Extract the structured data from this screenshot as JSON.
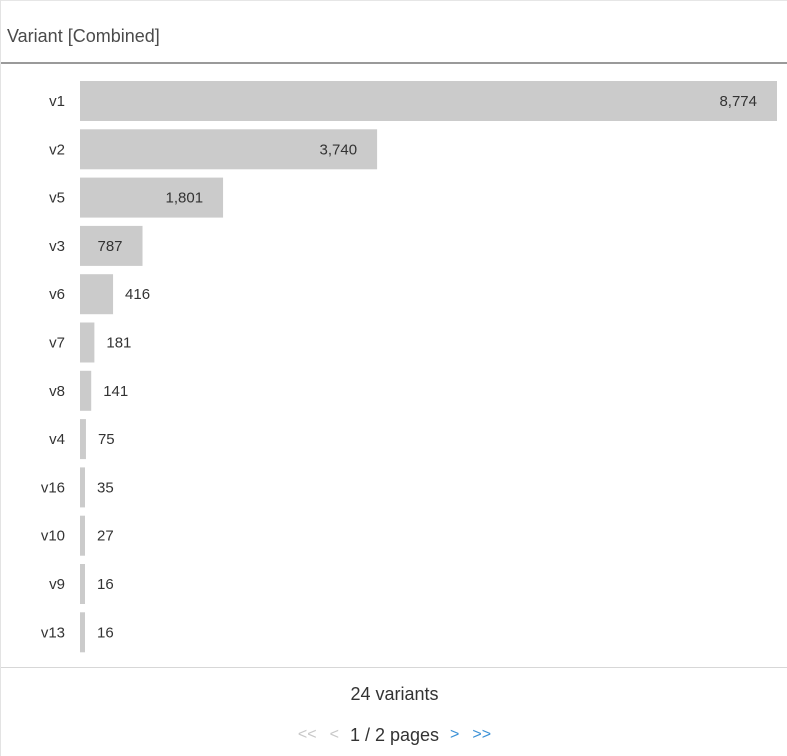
{
  "panel": {
    "title": "Variant [Combined]"
  },
  "chart_data": {
    "type": "bar",
    "orientation": "horizontal",
    "categories": [
      "v1",
      "v2",
      "v5",
      "v3",
      "v6",
      "v7",
      "v8",
      "v4",
      "v16",
      "v10",
      "v9",
      "v13"
    ],
    "values": [
      8774,
      3740,
      1801,
      787,
      416,
      181,
      141,
      75,
      35,
      27,
      16,
      16
    ],
    "value_labels": [
      "8,774",
      "3,740",
      "1,801",
      "787",
      "416",
      "181",
      "141",
      "75",
      "35",
      "27",
      "16",
      "16"
    ],
    "title": "",
    "xlabel": "",
    "ylabel": "",
    "xlim": [
      0,
      8774
    ],
    "bar_color": "#cbcbcb",
    "grid": false,
    "legend": "none"
  },
  "footer": {
    "variant_count": "24 variants",
    "page_status": "1 / 2 pages",
    "first_page_symbol": "<<",
    "prev_page_symbol": "<",
    "next_page_symbol": ">",
    "last_page_symbol": ">>"
  },
  "colors": {
    "bar": "#cbcbcb",
    "link": "#3b91d6",
    "disabled": "#c8c8c8",
    "header_rule": "#9a9a9a"
  }
}
